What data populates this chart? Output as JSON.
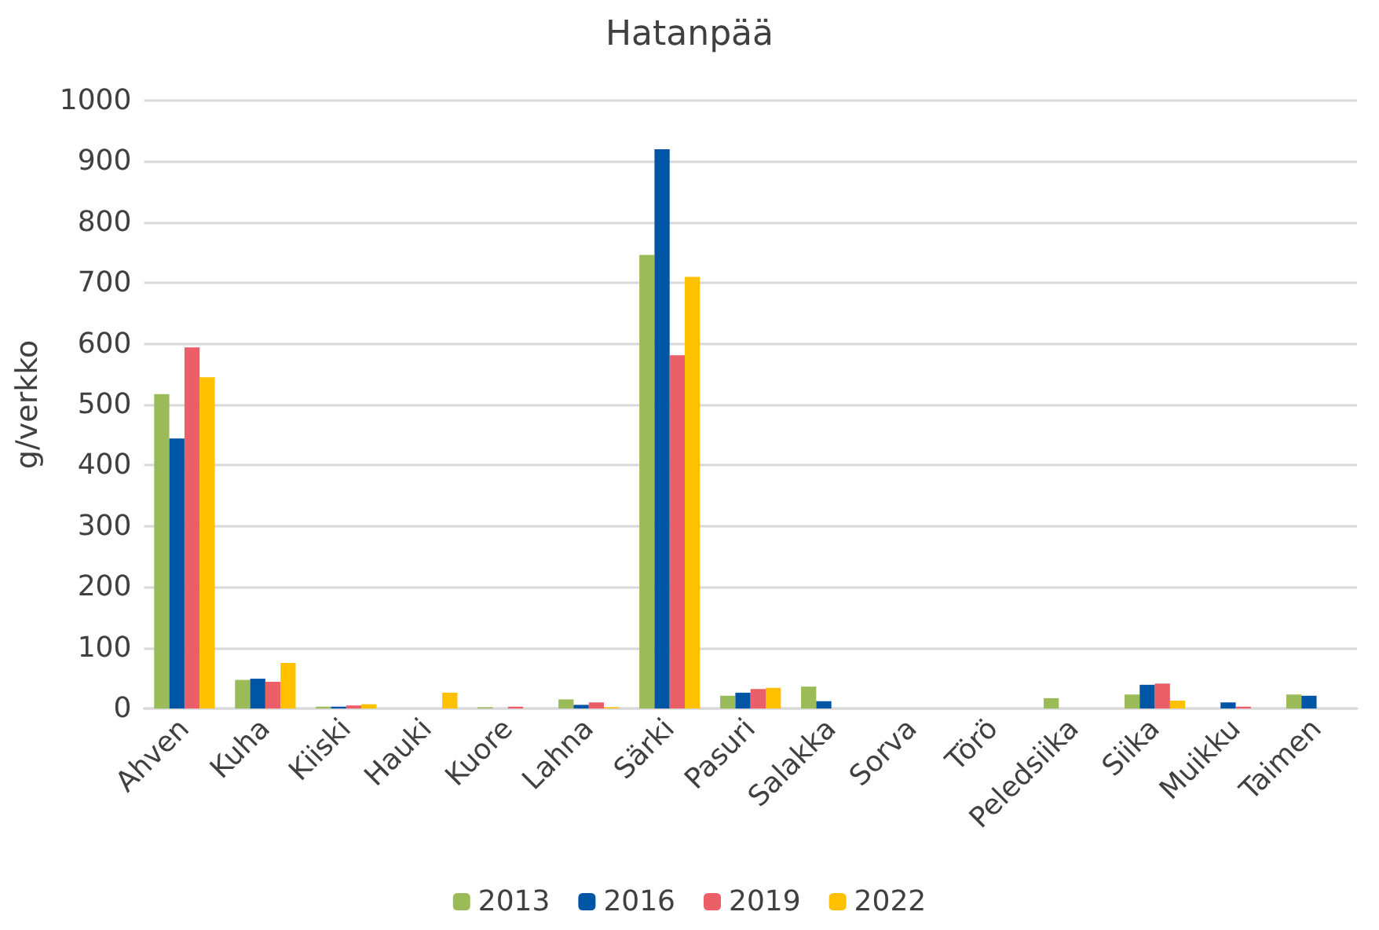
{
  "chart_data": {
    "type": "bar",
    "title": "Hatanpää",
    "ylabel": "g/verkko",
    "categories": [
      "Ahven",
      "Kuha",
      "Kiiski",
      "Hauki",
      "Kuore",
      "Lahna",
      "Särki",
      "Pasuri",
      "Salakka",
      "Sorva",
      "Törö",
      "Peledsiika",
      "Siika",
      "Muikku",
      "Taimen"
    ],
    "series": [
      {
        "name": "2013",
        "color": "#9bbb59",
        "values": [
          517,
          47,
          3,
          null,
          2,
          15,
          746,
          21,
          36,
          null,
          null,
          17,
          23,
          null,
          23
        ]
      },
      {
        "name": "2016",
        "color": "#0055a4",
        "values": [
          444,
          49,
          3,
          null,
          null,
          6,
          920,
          26,
          12,
          null,
          null,
          null,
          39,
          10,
          21
        ]
      },
      {
        "name": "2019",
        "color": "#ea5f68",
        "values": [
          594,
          44,
          5,
          null,
          3,
          10,
          581,
          32,
          null,
          null,
          null,
          null,
          41,
          3,
          null
        ]
      },
      {
        "name": "2022",
        "color": "#ffc000",
        "values": [
          545,
          75,
          7,
          26,
          null,
          2,
          710,
          34,
          null,
          null,
          null,
          null,
          13,
          null,
          null
        ]
      }
    ],
    "ylim": [
      0,
      1000
    ],
    "yticks": [
      0,
      100,
      200,
      300,
      400,
      500,
      600,
      700,
      800,
      900,
      1000
    ],
    "grid": "y",
    "legend": "bottom"
  }
}
